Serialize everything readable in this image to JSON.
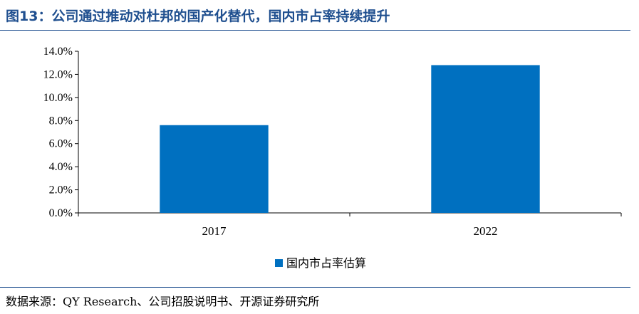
{
  "figure_title": "图13：公司通过推动对杜邦的国产化替代，国内市占率持续提升",
  "source": "数据来源：QY Research、公司招股说明书、开源证券研究所",
  "colors": {
    "bar": "#0070C0",
    "axis": "#000000",
    "title": "#1F4F8F"
  },
  "chart_data": {
    "type": "bar",
    "categories": [
      "2017",
      "2022"
    ],
    "series": [
      {
        "name": "国内市占率估算",
        "values": [
          7.6,
          12.8
        ]
      }
    ],
    "ylim": [
      0,
      14
    ],
    "yticks": [
      0,
      2,
      4,
      6,
      8,
      10,
      12,
      14
    ],
    "ytick_labels": [
      "0.0%",
      "2.0%",
      "4.0%",
      "6.0%",
      "8.0%",
      "10.0%",
      "12.0%",
      "14.0%"
    ],
    "grid": false,
    "legend_position": "bottom"
  }
}
